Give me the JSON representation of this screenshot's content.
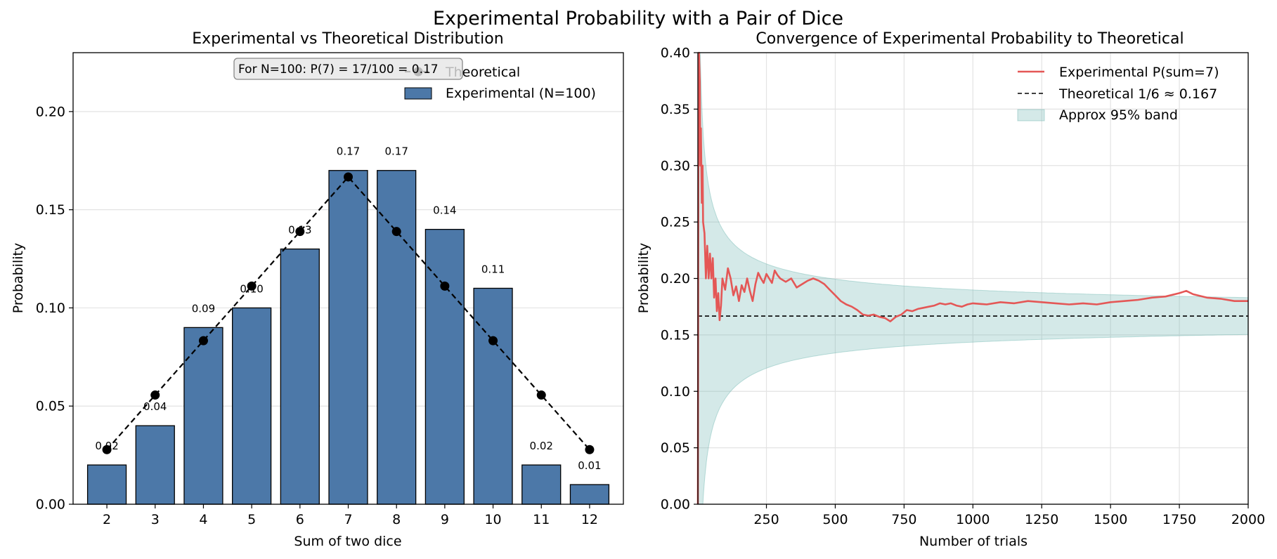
{
  "figure": {
    "suptitle": "Experimental Probability with a Pair of Dice"
  },
  "chart_data": [
    {
      "type": "bar",
      "title": "Experimental vs Theoretical Distribution",
      "xlabel": "Sum of two dice",
      "ylabel": "Probability",
      "ylim": [
        0,
        0.23
      ],
      "yticks": [
        0.0,
        0.05,
        0.1,
        0.15,
        0.2
      ],
      "ytick_labels": [
        "0.00",
        "0.05",
        "0.10",
        "0.15",
        "0.20"
      ],
      "categories": [
        "2",
        "3",
        "4",
        "5",
        "6",
        "7",
        "8",
        "9",
        "10",
        "11",
        "12"
      ],
      "grid": "y",
      "legend_placement": "top-right",
      "series": [
        {
          "name": "Experimental (N=100)",
          "kind": "bar",
          "color": "#4c78a8",
          "values": [
            0.02,
            0.04,
            0.09,
            0.1,
            0.13,
            0.17,
            0.17,
            0.14,
            0.11,
            0.02,
            0.01
          ],
          "labels": [
            "0.02",
            "0.04",
            "0.09",
            "0.10",
            "0.13",
            "0.17",
            "0.17",
            "0.14",
            "0.11",
            "0.02",
            "0.01"
          ]
        },
        {
          "name": "Theoretical",
          "kind": "line-markers",
          "color": "#000000",
          "style": "dashed",
          "values": [
            0.0278,
            0.0556,
            0.0833,
            0.1111,
            0.1389,
            0.1667,
            0.1389,
            0.1111,
            0.0833,
            0.0556,
            0.0278
          ]
        }
      ],
      "annotation": "For N=100: P(7) = 17/100 = 0.17"
    },
    {
      "type": "line",
      "title": "Convergence of Experimental Probability to Theoretical",
      "xlabel": "Number of trials",
      "ylabel": "Probability",
      "xlim": [
        1,
        2000
      ],
      "ylim": [
        0,
        0.4
      ],
      "xticks": [
        250,
        500,
        750,
        1000,
        1250,
        1500,
        1750,
        2000
      ],
      "xtick_labels": [
        "250",
        "500",
        "750",
        "1000",
        "1250",
        "1500",
        "1750",
        "2000"
      ],
      "yticks": [
        0.0,
        0.05,
        0.1,
        0.15,
        0.2,
        0.25,
        0.3,
        0.35,
        0.4
      ],
      "ytick_labels": [
        "0.00",
        "0.05",
        "0.10",
        "0.15",
        "0.20",
        "0.25",
        "0.30",
        "0.35",
        "0.40"
      ],
      "grid": "both",
      "legend_placement": "top-right",
      "series": [
        {
          "name": "Experimental P(sum=7)",
          "kind": "line",
          "color": "#e45756",
          "points": [
            [
              1,
              0.0
            ],
            [
              3,
              0.333
            ],
            [
              5,
              0.4
            ],
            [
              8,
              0.375
            ],
            [
              10,
              0.3
            ],
            [
              12,
              0.333
            ],
            [
              15,
              0.267
            ],
            [
              18,
              0.3
            ],
            [
              20,
              0.25
            ],
            [
              25,
              0.24
            ],
            [
              30,
              0.2
            ],
            [
              35,
              0.229
            ],
            [
              40,
              0.2
            ],
            [
              45,
              0.222
            ],
            [
              50,
              0.2
            ],
            [
              55,
              0.218
            ],
            [
              60,
              0.183
            ],
            [
              65,
              0.2
            ],
            [
              70,
              0.171
            ],
            [
              75,
              0.187
            ],
            [
              80,
              0.163
            ],
            [
              85,
              0.176
            ],
            [
              90,
              0.2
            ],
            [
              100,
              0.19
            ],
            [
              110,
              0.209
            ],
            [
              120,
              0.2
            ],
            [
              130,
              0.185
            ],
            [
              140,
              0.193
            ],
            [
              150,
              0.18
            ],
            [
              160,
              0.194
            ],
            [
              170,
              0.188
            ],
            [
              180,
              0.2
            ],
            [
              190,
              0.189
            ],
            [
              200,
              0.18
            ],
            [
              210,
              0.195
            ],
            [
              220,
              0.205
            ],
            [
              230,
              0.2
            ],
            [
              240,
              0.196
            ],
            [
              250,
              0.204
            ],
            [
              260,
              0.2
            ],
            [
              270,
              0.196
            ],
            [
              280,
              0.207
            ],
            [
              290,
              0.203
            ],
            [
              300,
              0.2
            ],
            [
              320,
              0.197
            ],
            [
              340,
              0.2
            ],
            [
              360,
              0.192
            ],
            [
              380,
              0.195
            ],
            [
              400,
              0.198
            ],
            [
              420,
              0.2
            ],
            [
              440,
              0.198
            ],
            [
              460,
              0.195
            ],
            [
              480,
              0.19
            ],
            [
              500,
              0.185
            ],
            [
              520,
              0.18
            ],
            [
              540,
              0.177
            ],
            [
              560,
              0.175
            ],
            [
              580,
              0.172
            ],
            [
              600,
              0.168
            ],
            [
              620,
              0.167
            ],
            [
              640,
              0.168
            ],
            [
              660,
              0.166
            ],
            [
              680,
              0.165
            ],
            [
              700,
              0.162
            ],
            [
              720,
              0.166
            ],
            [
              740,
              0.168
            ],
            [
              760,
              0.172
            ],
            [
              780,
              0.171
            ],
            [
              800,
              0.173
            ],
            [
              820,
              0.174
            ],
            [
              840,
              0.175
            ],
            [
              860,
              0.176
            ],
            [
              880,
              0.178
            ],
            [
              900,
              0.177
            ],
            [
              920,
              0.178
            ],
            [
              940,
              0.176
            ],
            [
              960,
              0.175
            ],
            [
              980,
              0.177
            ],
            [
              1000,
              0.178
            ],
            [
              1050,
              0.177
            ],
            [
              1100,
              0.179
            ],
            [
              1150,
              0.178
            ],
            [
              1200,
              0.18
            ],
            [
              1250,
              0.179
            ],
            [
              1300,
              0.178
            ],
            [
              1350,
              0.177
            ],
            [
              1400,
              0.178
            ],
            [
              1450,
              0.177
            ],
            [
              1500,
              0.179
            ],
            [
              1550,
              0.18
            ],
            [
              1600,
              0.181
            ],
            [
              1650,
              0.183
            ],
            [
              1700,
              0.184
            ],
            [
              1750,
              0.187
            ],
            [
              1775,
              0.189
            ],
            [
              1800,
              0.186
            ],
            [
              1850,
              0.183
            ],
            [
              1900,
              0.182
            ],
            [
              1950,
              0.18
            ],
            [
              2000,
              0.18
            ]
          ]
        },
        {
          "name": "Theoretical 1/6 ≈ 0.167",
          "kind": "hline",
          "color": "#000000",
          "style": "dashed",
          "value": 0.1667
        },
        {
          "name": "Approx 95% band",
          "kind": "band",
          "color": "#72b7b2",
          "center": 0.1667,
          "std_coefficient": 0.3727,
          "z": 1.96
        }
      ]
    }
  ]
}
